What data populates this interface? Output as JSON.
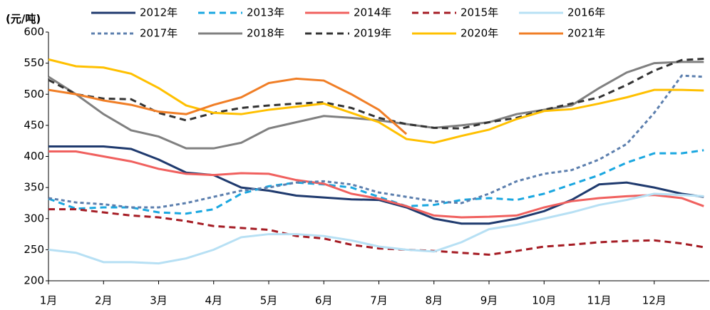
{
  "chart_data": {
    "type": "line",
    "y_label": "(元/吨)",
    "x": [
      1,
      1.5,
      2,
      2.5,
      3,
      3.5,
      4,
      4.5,
      5,
      5.5,
      6,
      6.5,
      7,
      7.5,
      8,
      8.5,
      9,
      9.5,
      10,
      10.5,
      11,
      11.5,
      12,
      12.5,
      12.9
    ],
    "xlim": [
      1,
      13
    ],
    "xticks": [
      {
        "value": 1,
        "label": "1月"
      },
      {
        "value": 2,
        "label": "2月"
      },
      {
        "value": 3,
        "label": "3月"
      },
      {
        "value": 4,
        "label": "4月"
      },
      {
        "value": 5,
        "label": "5月"
      },
      {
        "value": 6,
        "label": "6月"
      },
      {
        "value": 7,
        "label": "7月"
      },
      {
        "value": 8,
        "label": "8月"
      },
      {
        "value": 9,
        "label": "9月"
      },
      {
        "value": 10,
        "label": "10月"
      },
      {
        "value": 11,
        "label": "11月"
      },
      {
        "value": 12,
        "label": "12月"
      }
    ],
    "ylim": [
      200,
      600
    ],
    "yticks": [
      200,
      250,
      300,
      350,
      400,
      450,
      500,
      550,
      600
    ],
    "grid": false,
    "legend": "top",
    "series": [
      {
        "name": "2012年",
        "color": "#1f3a6e",
        "style": "solid",
        "values": [
          416,
          416,
          416,
          412,
          395,
          374,
          370,
          350,
          345,
          337,
          334,
          331,
          330,
          318,
          300,
          292,
          292,
          300,
          312,
          330,
          355,
          358,
          350,
          340,
          335
        ]
      },
      {
        "name": "2013年",
        "color": "#1aa7e0",
        "style": "dashed",
        "values": [
          332,
          316,
          318,
          318,
          310,
          308,
          315,
          340,
          352,
          358,
          355,
          350,
          335,
          320,
          322,
          330,
          333,
          330,
          340,
          355,
          370,
          390,
          405,
          405,
          410
        ]
      },
      {
        "name": "2014年",
        "color": "#f0605e",
        "style": "solid",
        "values": [
          408,
          408,
          400,
          392,
          380,
          372,
          370,
          373,
          372,
          362,
          356,
          340,
          332,
          320,
          305,
          302,
          303,
          305,
          318,
          328,
          333,
          336,
          338,
          333,
          320
        ]
      },
      {
        "name": "2015年",
        "color": "#a51c24",
        "style": "dashed",
        "values": [
          315,
          315,
          310,
          305,
          302,
          296,
          288,
          285,
          282,
          272,
          268,
          258,
          252,
          250,
          248,
          245,
          242,
          248,
          255,
          258,
          262,
          264,
          265,
          260,
          254
        ]
      },
      {
        "name": "2016年",
        "color": "#b7e0f4",
        "style": "solid",
        "values": [
          250,
          245,
          230,
          230,
          228,
          236,
          250,
          270,
          275,
          275,
          272,
          265,
          255,
          250,
          247,
          262,
          283,
          290,
          300,
          310,
          322,
          330,
          340,
          338,
          336
        ]
      },
      {
        "name": "2017年",
        "color": "#5c7fae",
        "style": "dotted",
        "values": [
          333,
          326,
          323,
          318,
          318,
          325,
          335,
          345,
          350,
          358,
          360,
          355,
          342,
          335,
          328,
          325,
          340,
          360,
          372,
          378,
          395,
          420,
          470,
          530,
          528
        ]
      },
      {
        "name": "2018年",
        "color": "#808080",
        "style": "solid",
        "values": [
          528,
          500,
          468,
          442,
          432,
          413,
          413,
          422,
          445,
          455,
          465,
          462,
          458,
          452,
          446,
          450,
          455,
          468,
          475,
          482,
          510,
          535,
          550,
          552,
          552
        ]
      },
      {
        "name": "2019年",
        "color": "#333333",
        "style": "dashed",
        "values": [
          523,
          500,
          493,
          492,
          470,
          458,
          470,
          478,
          482,
          485,
          487,
          478,
          462,
          452,
          446,
          445,
          455,
          462,
          475,
          485,
          495,
          515,
          538,
          555,
          557
        ]
      },
      {
        "name": "2020年",
        "color": "#ffc000",
        "style": "solid",
        "values": [
          556,
          545,
          543,
          533,
          510,
          482,
          470,
          468,
          475,
          480,
          485,
          470,
          455,
          428,
          422,
          433,
          443,
          460,
          473,
          476,
          485,
          495,
          507,
          507,
          506
        ]
      },
      {
        "name": "2021年",
        "color": "#f07e26",
        "style": "solid",
        "values": [
          507,
          500,
          490,
          483,
          472,
          468,
          483,
          495,
          518,
          525,
          522,
          500,
          475,
          436,
          null,
          null,
          null,
          null,
          null,
          null,
          null,
          null,
          null,
          null,
          null
        ]
      }
    ]
  }
}
